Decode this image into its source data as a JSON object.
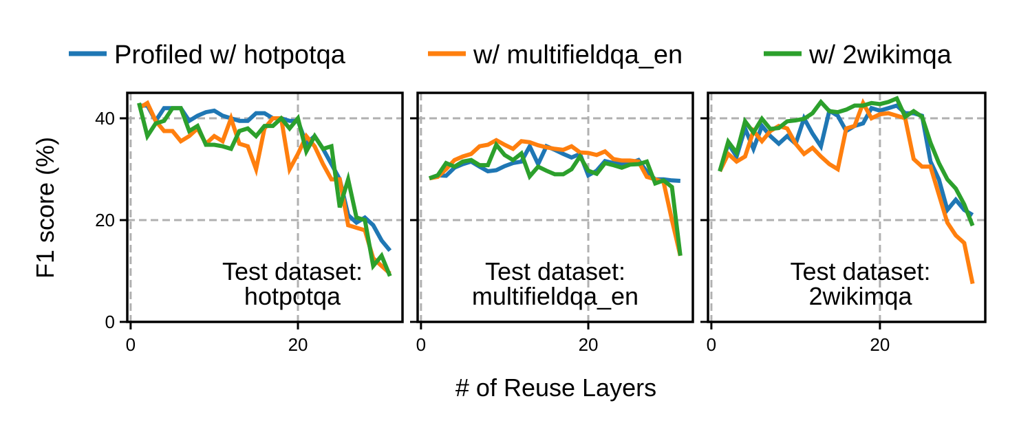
{
  "chart_data": {
    "type": "line",
    "ylabel": "F1 score (%)",
    "xlabel": "# of Reuse Layers",
    "ylim": [
      0,
      45
    ],
    "xlim": [
      -0.4,
      32.5
    ],
    "yticks": [
      0,
      20,
      40
    ],
    "xticks": [
      0,
      20
    ],
    "grid": true,
    "legend_placement": "top",
    "legend": [
      "Profiled w/ hotpotqa",
      "w/ multifieldqa_en",
      "w/ 2wikimqa"
    ],
    "colors": [
      "#1f77b4",
      "#ff7f0e",
      "#2ca02c"
    ],
    "x": [
      1,
      2,
      3,
      4,
      5,
      6,
      7,
      8,
      9,
      10,
      11,
      12,
      13,
      14,
      15,
      16,
      17,
      18,
      19,
      20,
      21,
      22,
      23,
      24,
      25,
      26,
      27,
      28,
      29,
      30,
      31
    ],
    "panels": [
      {
        "annotation": [
          "Test dataset:",
          "hotpotqa"
        ],
        "series": [
          {
            "name": "Profiled w/ hotpotqa",
            "values": [
              42.5,
              42.5,
              39.5,
              42,
              42,
              42,
              39.5,
              40.5,
              41.2,
              41.5,
              40.5,
              40,
              39.5,
              39.5,
              41,
              41,
              40,
              40,
              39.5,
              39.5,
              35,
              36.5,
              34,
              31,
              28,
              21,
              19.5,
              20.5,
              19,
              16,
              14
            ]
          },
          {
            "name": "w/ multifieldqa_en",
            "values": [
              42,
              43,
              39.5,
              37.5,
              37.5,
              35.5,
              36.5,
              38,
              35,
              36.5,
              35.5,
              40,
              35,
              34.5,
              30,
              38,
              40,
              40,
              30,
              33,
              36.5,
              34.5,
              31,
              28,
              28,
              19,
              18.5,
              18,
              12.5,
              11,
              9.5
            ]
          },
          {
            "name": "w/ 2wikimqa",
            "values": [
              43,
              36.5,
              39,
              39.5,
              42,
              42,
              37.5,
              38.5,
              34.8,
              34.8,
              34.5,
              34,
              37.5,
              38,
              36.5,
              38.5,
              38.5,
              40,
              38,
              40,
              33.5,
              36.5,
              34,
              34.5,
              22.5,
              28,
              20.5,
              20,
              11,
              13,
              9
            ]
          }
        ]
      },
      {
        "annotation": [
          "Test dataset:",
          "multifieldqa_en"
        ],
        "series": [
          {
            "name": "Profiled w/ hotpotqa",
            "values": [
              28.2,
              28.8,
              28.7,
              30.3,
              31,
              31.5,
              30.5,
              29.6,
              29.8,
              30.6,
              31.2,
              31.5,
              34.5,
              31,
              34.5,
              33.8,
              33,
              32.3,
              33,
              28.8,
              29.7,
              31.6,
              31.2,
              31,
              31.2,
              31.8,
              29.5,
              28,
              28,
              27.8,
              27.7
            ]
          },
          {
            "name": "w/ multifieldqa_en",
            "values": [
              28.2,
              28.5,
              30,
              31.8,
              32.5,
              33,
              34.5,
              34.8,
              35.7,
              34.8,
              34,
              35.5,
              35.3,
              34.7,
              34.3,
              34,
              33.8,
              34.5,
              33.3,
              33.2,
              32.8,
              33.5,
              32,
              31.7,
              31.7,
              31.5,
              28.5,
              28,
              27.5,
              20,
              13
            ]
          },
          {
            "name": "w/ 2wikimqa",
            "values": [
              28.2,
              28.8,
              31.2,
              30.5,
              31.5,
              31.8,
              30.8,
              30.8,
              34.8,
              32.8,
              31.8,
              33.1,
              28.6,
              30.5,
              29.7,
              29,
              29,
              30,
              32.5,
              29.7,
              29.1,
              31.2,
              30.8,
              30.3,
              30.9,
              31,
              31.5,
              27.2,
              27.8,
              26.5,
              13
            ]
          }
        ]
      },
      {
        "annotation": [
          "Test dataset:",
          "2wikimqa"
        ],
        "series": [
          {
            "name": "Profiled w/ hotpotqa",
            "values": [
              29.6,
              35,
              32.5,
              38,
              34,
              38.5,
              36.5,
              35,
              36.5,
              35,
              40,
              37,
              34.5,
              41.5,
              40.5,
              37.5,
              38.5,
              39,
              42,
              41.5,
              42,
              42.5,
              41,
              41,
              40.5,
              31.5,
              28,
              22,
              24,
              22,
              21
            ]
          },
          {
            "name": "w/ multifieldqa_en",
            "values": [
              29.6,
              33,
              31.5,
              32.5,
              37.5,
              35.5,
              37.5,
              38.5,
              38,
              35,
              33,
              34.2,
              32.5,
              31,
              30,
              38,
              38.5,
              43,
              40,
              40.8,
              41,
              40.5,
              40,
              32,
              30.5,
              30.5,
              25,
              19.5,
              17,
              15.5,
              7.5
            ]
          },
          {
            "name": "w/ 2wikimqa",
            "values": [
              29.6,
              35.4,
              33.2,
              39.4,
              37.2,
              39.9,
              37.9,
              38.1,
              39.4,
              39.6,
              39.9,
              41,
              43.2,
              41.4,
              41.2,
              41.7,
              42.5,
              42.5,
              43,
              42.8,
              43.2,
              43.9,
              40.3,
              41.4,
              40.3,
              35.2,
              31.2,
              28,
              26.2,
              23.1,
              18.9
            ]
          }
        ]
      }
    ]
  }
}
